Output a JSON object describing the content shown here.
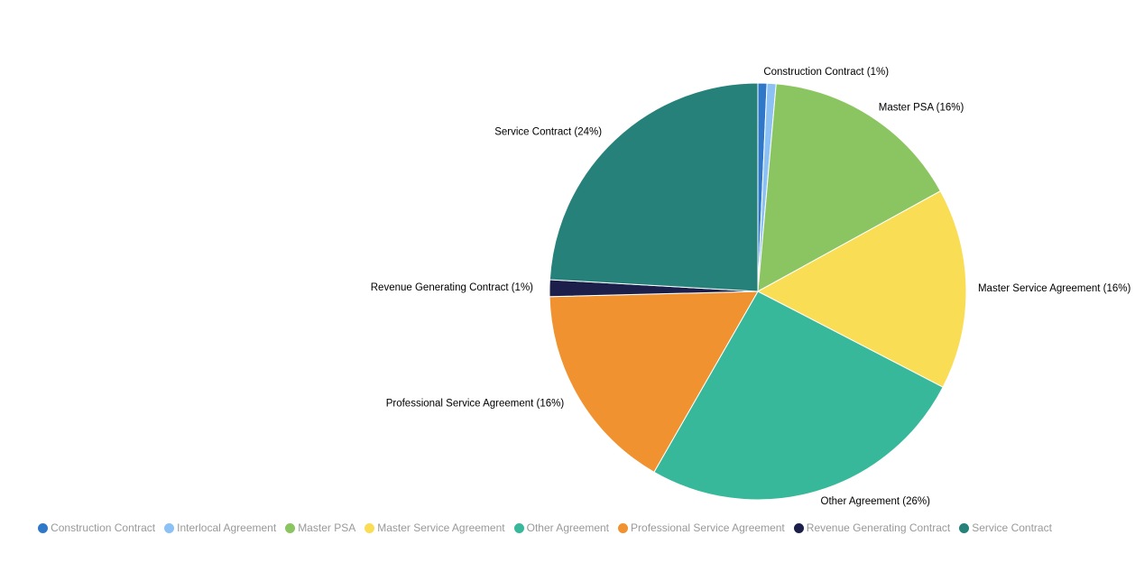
{
  "chart_data": {
    "type": "pie",
    "start_angle": "top, clockwise",
    "legend_placement": "bottom",
    "slices": [
      {
        "name": "Construction Contract",
        "value": 0.7,
        "label": "Construction Contract (1%)",
        "color": "#2f78c9"
      },
      {
        "name": "Interlocal Agreement",
        "value": 0.7,
        "label": "",
        "color": "#8cc1f5"
      },
      {
        "name": "Master PSA",
        "value": 15.6,
        "label": "Master PSA (16%)",
        "color": "#8bc561"
      },
      {
        "name": "Master Service Agreement",
        "value": 15.6,
        "label": "Master Service Agreement (16%)",
        "color": "#f9de55"
      },
      {
        "name": "Other Agreement",
        "value": 25.7,
        "label": "Other Agreement (26%)",
        "color": "#37b89a"
      },
      {
        "name": "Professional Service Agreement",
        "value": 16.3,
        "label": "Professional Service Agreement (16%)",
        "color": "#ef922f"
      },
      {
        "name": "Revenue Generating Contract",
        "value": 1.3,
        "label": "Revenue Generating Contract (1%)",
        "color": "#1b1f4a"
      },
      {
        "name": "Service Contract",
        "value": 24.1,
        "label": "Service Contract (24%)",
        "color": "#25817a"
      }
    ]
  }
}
